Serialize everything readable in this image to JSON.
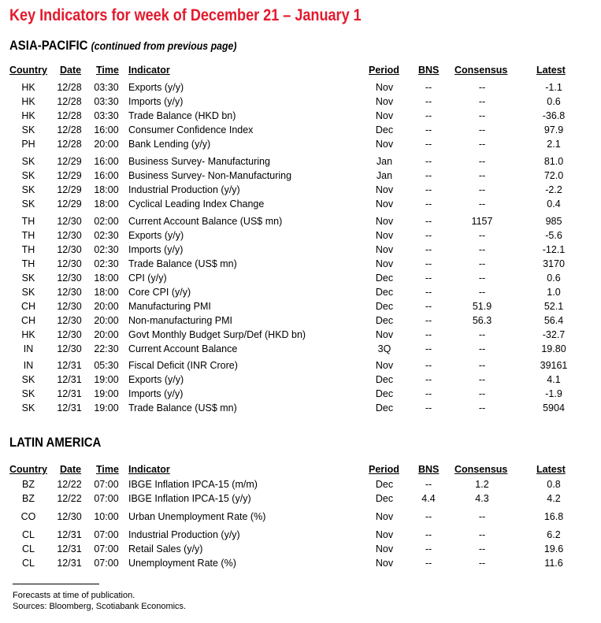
{
  "title": "Key Indicators for week of December 21 – January 1",
  "headers": {
    "country": "Country",
    "date": "Date",
    "time": "Time",
    "indicator": "Indicator",
    "period": "Period",
    "bns": "BNS",
    "consensus": "Consensus",
    "latest": "Latest"
  },
  "sections": [
    {
      "name": "ASIA-PACIFIC",
      "note": "(continued from previous page)",
      "groups": [
        [
          [
            "HK",
            "12/28",
            "03:30",
            "Exports (y/y)",
            "Nov",
            "--",
            "--",
            "-1.1"
          ],
          [
            "HK",
            "12/28",
            "03:30",
            "Imports (y/y)",
            "Nov",
            "--",
            "--",
            "0.6"
          ],
          [
            "HK",
            "12/28",
            "03:30",
            "Trade Balance (HKD bn)",
            "Nov",
            "--",
            "--",
            "-36.8"
          ],
          [
            "SK",
            "12/28",
            "16:00",
            "Consumer Confidence Index",
            "Dec",
            "--",
            "--",
            "97.9"
          ],
          [
            "PH",
            "12/28",
            "20:00",
            "Bank Lending (y/y)",
            "Nov",
            "--",
            "--",
            "2.1"
          ]
        ],
        [
          [
            "SK",
            "12/29",
            "16:00",
            "Business Survey- Manufacturing",
            "Jan",
            "--",
            "--",
            "81.0"
          ],
          [
            "SK",
            "12/29",
            "16:00",
            "Business Survey- Non-Manufacturing",
            "Jan",
            "--",
            "--",
            "72.0"
          ],
          [
            "SK",
            "12/29",
            "18:00",
            "Industrial Production (y/y)",
            "Nov",
            "--",
            "--",
            "-2.2"
          ],
          [
            "SK",
            "12/29",
            "18:00",
            "Cyclical Leading Index Change",
            "Nov",
            "--",
            "--",
            "0.4"
          ]
        ],
        [
          [
            "TH",
            "12/30",
            "02:00",
            "Current Account Balance (US$ mn)",
            "Nov",
            "--",
            "1157",
            "985"
          ],
          [
            "TH",
            "12/30",
            "02:30",
            "Exports (y/y)",
            "Nov",
            "--",
            "--",
            "-5.6"
          ],
          [
            "TH",
            "12/30",
            "02:30",
            "Imports (y/y)",
            "Nov",
            "--",
            "--",
            "-12.1"
          ],
          [
            "TH",
            "12/30",
            "02:30",
            "Trade Balance (US$ mn)",
            "Nov",
            "--",
            "--",
            "3170"
          ],
          [
            "SK",
            "12/30",
            "18:00",
            "CPI (y/y)",
            "Dec",
            "--",
            "--",
            "0.6"
          ],
          [
            "SK",
            "12/30",
            "18:00",
            "Core CPI (y/y)",
            "Dec",
            "--",
            "--",
            "1.0"
          ],
          [
            "CH",
            "12/30",
            "20:00",
            "Manufacturing PMI",
            "Dec",
            "--",
            "51.9",
            "52.1"
          ],
          [
            "CH",
            "12/30",
            "20:00",
            "Non-manufacturing PMI",
            "Dec",
            "--",
            "56.3",
            "56.4"
          ],
          [
            "HK",
            "12/30",
            "20:00",
            "Govt Monthly Budget Surp/Def (HKD bn)",
            "Nov",
            "--",
            "--",
            "-32.7"
          ],
          [
            "IN",
            "12/30",
            "22:30",
            "Current Account Balance",
            "3Q",
            "--",
            "--",
            "19.80"
          ]
        ],
        [
          [
            "IN",
            "12/31",
            "05:30",
            "Fiscal Deficit (INR Crore)",
            "Nov",
            "--",
            "--",
            "39161"
          ],
          [
            "SK",
            "12/31",
            "19:00",
            "Exports (y/y)",
            "Dec",
            "--",
            "--",
            "4.1"
          ],
          [
            "SK",
            "12/31",
            "19:00",
            "Imports (y/y)",
            "Dec",
            "--",
            "--",
            "-1.9"
          ],
          [
            "SK",
            "12/31",
            "19:00",
            "Trade Balance (US$ mn)",
            "Dec",
            "--",
            "--",
            "5904"
          ]
        ]
      ]
    },
    {
      "name": "LATIN AMERICA",
      "note": "",
      "groups": [
        [
          [
            "BZ",
            "12/22",
            "07:00",
            "IBGE Inflation IPCA-15 (m/m)",
            "Dec",
            "--",
            "1.2",
            "0.8"
          ],
          [
            "BZ",
            "12/22",
            "07:00",
            "IBGE Inflation IPCA-15 (y/y)",
            "Dec",
            "4.4",
            "4.3",
            "4.2"
          ]
        ],
        [
          [
            "CO",
            "12/30",
            "10:00",
            "Urban Unemployment Rate (%)",
            "Nov",
            "--",
            "--",
            "16.8"
          ]
        ],
        [
          [
            "CL",
            "12/31",
            "07:00",
            "Industrial Production (y/y)",
            "Nov",
            "--",
            "--",
            "6.2"
          ],
          [
            "CL",
            "12/31",
            "07:00",
            "Retail Sales (y/y)",
            "Nov",
            "--",
            "--",
            "19.6"
          ],
          [
            "CL",
            "12/31",
            "07:00",
            "Unemployment Rate (%)",
            "Nov",
            "--",
            "--",
            "11.6"
          ]
        ]
      ]
    }
  ],
  "footer": {
    "line1": "Forecasts at time of publication.",
    "line2": "Sources: Bloomberg, Scotiabank Economics."
  }
}
